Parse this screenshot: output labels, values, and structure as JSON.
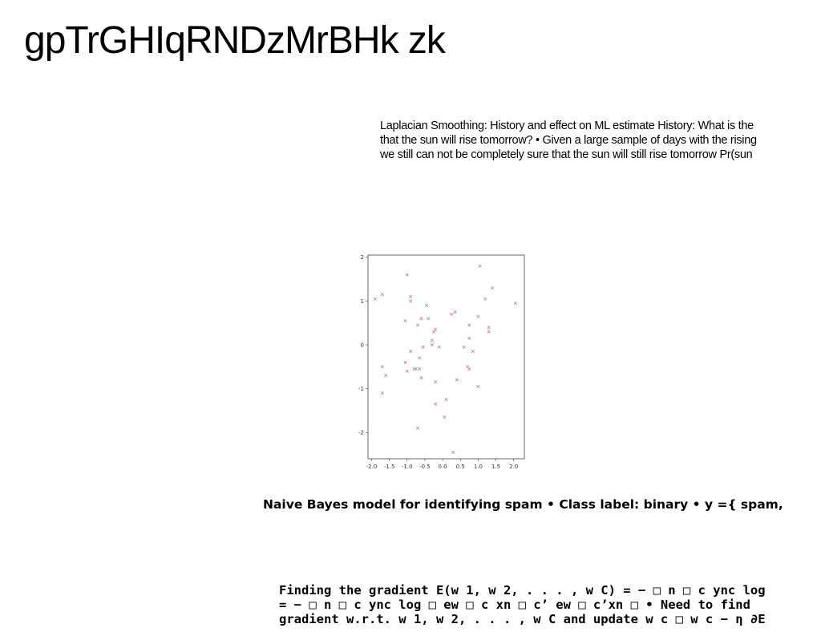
{
  "page": {
    "title": "gpTrGHIqRNDzMrBHk zk"
  },
  "laplacian": {
    "lines": [
      "Laplacian Smoothing: History and effect on ML estimate History: What is the",
      "that the sun will rise tomorrow? • Given a large sample of days with the rising",
      "we still can not be completely sure that the sun will still rise tomorrow Pr(sun"
    ]
  },
  "naive_bayes": {
    "text": "Naive Bayes model for identifying spam • Class label: binary • y ={ spam,"
  },
  "gradient": {
    "lines": [
      "Finding the gradient E(w 1, w 2, . . . , w C) = − □ n □ c ync log",
      "= − □ n □ c ync log □ ew □ c xn □ c’ ew □ c’xn □ • Need to find",
      "gradient w.r.t. w 1, w 2, . . . , w C and update w c □ w c − η ∂E"
    ]
  },
  "chart_data": {
    "type": "scatter",
    "marker": "x",
    "color": "#c48a9a",
    "xlim": [
      -2.1,
      2.3
    ],
    "ylim": [
      -2.6,
      2.05
    ],
    "xticks": [
      "-2.0",
      "-1.5",
      "-1.0",
      "-0.5",
      "0.0",
      "0.5",
      "1.0",
      "1.5",
      "2.0"
    ],
    "xtick_values": [
      -2.0,
      -1.5,
      -1.0,
      -0.5,
      0.0,
      0.5,
      1.0,
      1.5,
      2.0
    ],
    "yticks": [
      "2",
      "1",
      "0",
      "-1",
      "-2"
    ],
    "ytick_values": [
      2,
      1,
      0,
      -1,
      -2
    ],
    "points": [
      [
        -1.9,
        1.05
      ],
      [
        -1.7,
        1.15
      ],
      [
        -1.0,
        1.6
      ],
      [
        -0.9,
        1.1
      ],
      [
        -0.9,
        1.0
      ],
      [
        -1.05,
        0.55
      ],
      [
        -0.7,
        0.45
      ],
      [
        -0.6,
        0.6
      ],
      [
        -0.4,
        0.6
      ],
      [
        -0.45,
        0.9
      ],
      [
        -0.2,
        0.35
      ],
      [
        -0.25,
        0.3
      ],
      [
        0.25,
        0.7
      ],
      [
        0.35,
        0.75
      ],
      [
        0.75,
        0.45
      ],
      [
        1.0,
        0.65
      ],
      [
        1.2,
        1.05
      ],
      [
        1.4,
        1.3
      ],
      [
        1.05,
        1.8
      ],
      [
        2.05,
        0.95
      ],
      [
        1.3,
        0.4
      ],
      [
        1.3,
        0.3
      ],
      [
        0.75,
        0.15
      ],
      [
        0.85,
        -0.15
      ],
      [
        0.6,
        -0.05
      ],
      [
        -0.3,
        0.1
      ],
      [
        -0.3,
        0.0
      ],
      [
        -0.55,
        -0.05
      ],
      [
        -0.1,
        -0.05
      ],
      [
        -0.9,
        -0.15
      ],
      [
        -0.65,
        -0.3
      ],
      [
        -1.7,
        -0.5
      ],
      [
        -1.6,
        -0.7
      ],
      [
        -1.05,
        -0.4
      ],
      [
        -1.0,
        -0.6
      ],
      [
        -0.8,
        -0.55
      ],
      [
        -0.75,
        -0.55
      ],
      [
        -0.65,
        -0.55
      ],
      [
        -0.6,
        -0.75
      ],
      [
        0.7,
        -0.5
      ],
      [
        0.75,
        -0.55
      ],
      [
        0.4,
        -0.8
      ],
      [
        -0.2,
        -0.85
      ],
      [
        1.0,
        -0.95
      ],
      [
        -1.7,
        -1.1
      ],
      [
        -0.2,
        -1.35
      ],
      [
        0.1,
        -1.25
      ],
      [
        0.05,
        -1.65
      ],
      [
        -0.7,
        -1.9
      ],
      [
        0.3,
        -2.45
      ]
    ]
  }
}
